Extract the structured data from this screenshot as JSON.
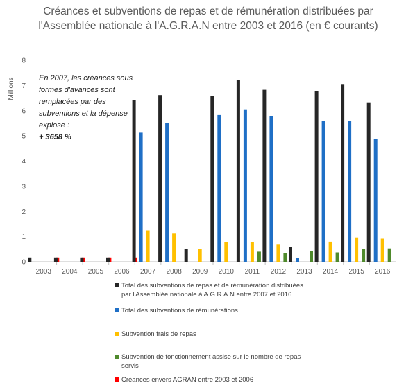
{
  "chart_data": {
    "type": "bar",
    "title": "Créances et subventions de repas et de rémunération distribuées par l'Assemblée nationale à l'A.G.R.A.N entre 2003 et 2016 (en € courants)",
    "ylabel": "Millions",
    "ylim": [
      0,
      8
    ],
    "yticks": [
      "0",
      "1",
      "2",
      "3",
      "4",
      "5",
      "6",
      "7",
      "8"
    ],
    "categories": [
      "2003",
      "2004",
      "2005",
      "2006",
      "2007",
      "2008",
      "2009",
      "2010",
      "2011",
      "2012",
      "2013",
      "2014",
      "2015",
      "2016"
    ],
    "grid": false,
    "legend_position": "bottom",
    "series": [
      {
        "name": "Total des subventions de repas et de rémunération distribuées par l'Assemblée nationale à A.G.R.A.N entre 2007 et 2016",
        "color": "#262626",
        "values": [
          0.17,
          0.17,
          0.17,
          0.17,
          6.42,
          6.62,
          0.52,
          6.58,
          7.22,
          6.83,
          0.58,
          6.78,
          7.03,
          6.33
        ]
      },
      {
        "name": "Total des subventions de rémunérations",
        "color": "#1f6fc6",
        "values": [
          null,
          null,
          null,
          null,
          5.13,
          5.5,
          null,
          5.83,
          6.03,
          5.78,
          0.15,
          5.58,
          5.58,
          4.88
        ]
      },
      {
        "name": "Subvention frais de repas",
        "color": "#ffc000",
        "values": [
          null,
          null,
          null,
          null,
          1.25,
          1.12,
          0.52,
          0.78,
          0.78,
          0.68,
          null,
          0.8,
          0.97,
          0.92
        ]
      },
      {
        "name": "Subvention de fonctionnement  assise sur le nombre de repas servis",
        "color": "#4f8a2c",
        "values": [
          null,
          null,
          null,
          null,
          null,
          null,
          null,
          null,
          0.4,
          0.33,
          0.43,
          0.37,
          0.5,
          0.53
        ]
      },
      {
        "name": "Créances envers AGRAN entre 2003 et 2006",
        "color": "#ff0000",
        "values": [
          0.17,
          0.17,
          0.17,
          0.17,
          null,
          null,
          null,
          null,
          null,
          null,
          null,
          null,
          null,
          null
        ]
      }
    ],
    "annotation": {
      "text": "En 2007, les créances sous formes d'avances sont remplacées par des subventions et la dépense explose :",
      "highlight": "+ 3658 %"
    }
  }
}
